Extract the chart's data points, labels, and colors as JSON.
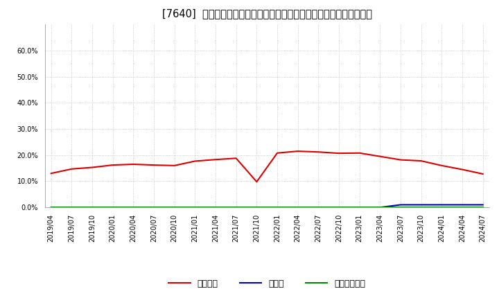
{
  "title": "[7640]  自己資本、のれん、繰延税金資産の総資産に対する比率の推移",
  "x_labels": [
    "2019/04",
    "2019/07",
    "2019/10",
    "2020/01",
    "2020/04",
    "2020/07",
    "2020/10",
    "2021/01",
    "2021/04",
    "2021/07",
    "2021/10",
    "2022/01",
    "2022/04",
    "2022/07",
    "2022/10",
    "2023/01",
    "2023/04",
    "2023/07",
    "2023/10",
    "2024/01",
    "2024/04",
    "2024/07"
  ],
  "equity_ratio": [
    0.13,
    0.147,
    0.153,
    0.162,
    0.165,
    0.162,
    0.16,
    0.177,
    0.183,
    0.188,
    0.098,
    0.208,
    0.215,
    0.212,
    0.207,
    0.208,
    0.195,
    0.182,
    0.178,
    0.16,
    0.145,
    0.128
  ],
  "goodwill_ratio": [
    0.0,
    0.0,
    0.0,
    0.0,
    0.0,
    0.0,
    0.0,
    0.0,
    0.0,
    0.0,
    0.0,
    0.0,
    0.0,
    0.0,
    0.0,
    0.0,
    0.0,
    0.01,
    0.01,
    0.01,
    0.01,
    0.01
  ],
  "deferred_tax_ratio": [
    0.0,
    0.0,
    0.0,
    0.0,
    0.0,
    0.0,
    0.0,
    0.0,
    0.0,
    0.0,
    0.0,
    0.0,
    0.0,
    0.0,
    0.0,
    0.0,
    0.0,
    0.0,
    0.0,
    0.0,
    0.0,
    0.0
  ],
  "equity_color": "#dd0000",
  "goodwill_color": "#0000cc",
  "deferred_tax_color": "#008800",
  "legend_labels": [
    "自己資本",
    "のれん",
    "繰延税金資産"
  ],
  "ylim": [
    0.0,
    0.7
  ],
  "yticks": [
    0.0,
    0.1,
    0.2,
    0.3,
    0.4,
    0.5,
    0.6
  ],
  "bg_color": "#ffffff",
  "plot_bg_color": "#ffffff",
  "grid_color": "#bbbbbb",
  "title_fontsize": 10.5,
  "tick_fontsize": 7
}
